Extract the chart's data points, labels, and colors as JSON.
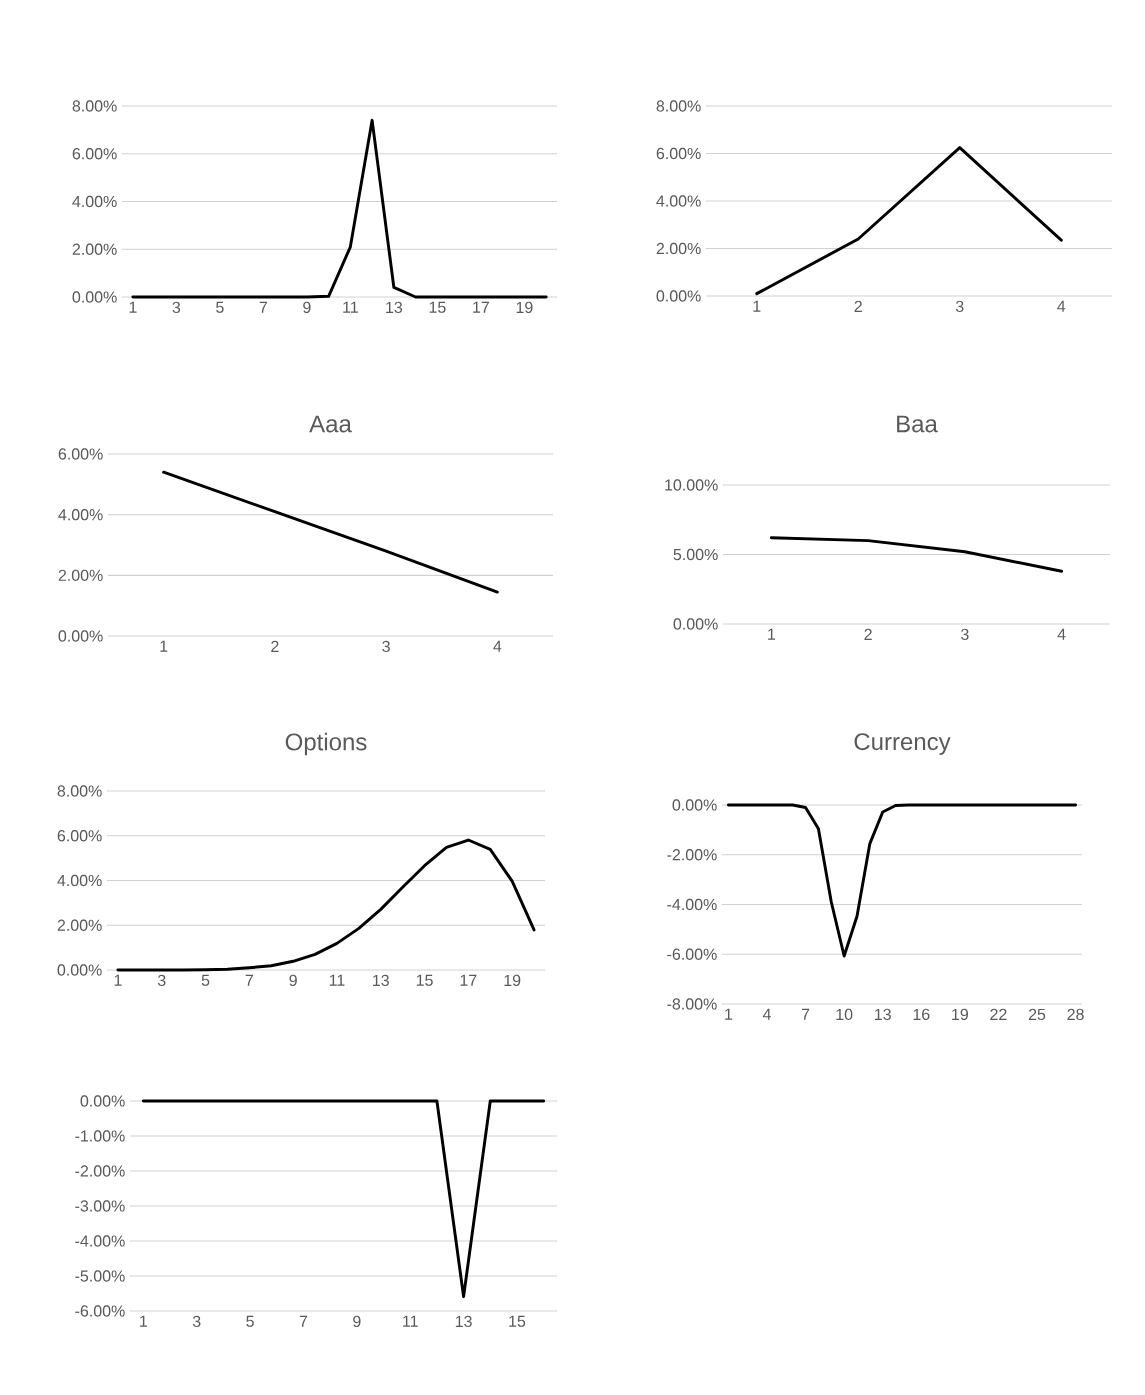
{
  "chart_data": [
    {
      "type": "line",
      "categories": [
        "1",
        null,
        "3",
        null,
        "5",
        null,
        "7",
        null,
        "9",
        null,
        "11",
        null,
        "13",
        null,
        "15",
        null,
        "17",
        null,
        "19",
        null
      ],
      "values": [
        0,
        0,
        0,
        0,
        0,
        0,
        0,
        0,
        0,
        0.03,
        2.1,
        7.4,
        0.4,
        0,
        0,
        0,
        0,
        0,
        0,
        0
      ],
      "color": "#000000",
      "ylim": [
        0,
        8
      ],
      "yticks": [
        {
          "value": 0,
          "label": "0.00%"
        },
        {
          "value": 2,
          "label": "2.00%"
        },
        {
          "value": 4,
          "label": "4.00%"
        },
        {
          "value": 6,
          "label": "6.00%"
        },
        {
          "value": 8,
          "label": "8.00%"
        }
      ],
      "grid": "y"
    },
    {
      "type": "line",
      "categories": [
        "1",
        "2",
        "3",
        "4"
      ],
      "values": [
        0.1,
        2.4,
        6.25,
        2.35
      ],
      "color": "#000000",
      "ylim": [
        0,
        8
      ],
      "yticks": [
        {
          "value": 0,
          "label": "0.00%"
        },
        {
          "value": 2,
          "label": "2.00%"
        },
        {
          "value": 4,
          "label": "4.00%"
        },
        {
          "value": 6,
          "label": "6.00%"
        },
        {
          "value": 8,
          "label": "8.00%"
        }
      ],
      "grid": "y"
    },
    {
      "type": "line",
      "title": "Aaa",
      "categories": [
        "1",
        "2",
        "3",
        "4"
      ],
      "values": [
        5.4,
        4.1,
        2.8,
        1.45
      ],
      "color": "#000000",
      "ylim": [
        0,
        6
      ],
      "yticks": [
        {
          "value": 0,
          "label": "0.00%"
        },
        {
          "value": 2,
          "label": "2.00%"
        },
        {
          "value": 4,
          "label": "4.00%"
        },
        {
          "value": 6,
          "label": "6.00%"
        }
      ],
      "grid": "y"
    },
    {
      "type": "line",
      "title": "Baa",
      "categories": [
        "1",
        "2",
        "3",
        "4"
      ],
      "values": [
        6.2,
        6.0,
        5.2,
        3.8
      ],
      "color": "#000000",
      "ylim": [
        0,
        10
      ],
      "yticks": [
        {
          "value": 0,
          "label": "0.00%"
        },
        {
          "value": 5,
          "label": "5.00%"
        },
        {
          "value": 10,
          "label": "10.00%"
        }
      ],
      "grid": "y"
    },
    {
      "type": "line",
      "title": "Options",
      "categories": [
        "1",
        null,
        "3",
        null,
        "5",
        null,
        "7",
        null,
        "9",
        null,
        "11",
        null,
        "13",
        null,
        "15",
        null,
        "17",
        null,
        "19",
        null
      ],
      "values": [
        0,
        0,
        0,
        0,
        0.01,
        0.03,
        0.1,
        0.19,
        0.39,
        0.7,
        1.19,
        1.86,
        2.71,
        3.7,
        4.66,
        5.48,
        5.81,
        5.39,
        3.97,
        1.79
      ],
      "color": "#000000",
      "ylim": [
        0,
        8
      ],
      "yticks": [
        {
          "value": 0,
          "label": "0.00%"
        },
        {
          "value": 2,
          "label": "2.00%"
        },
        {
          "value": 4,
          "label": "4.00%"
        },
        {
          "value": 6,
          "label": "6.00%"
        },
        {
          "value": 8,
          "label": "8.00%"
        }
      ],
      "grid": "y"
    },
    {
      "type": "line",
      "title": "Currency",
      "categories": [
        "1",
        null,
        null,
        "4",
        null,
        null,
        "7",
        null,
        null,
        "10",
        null,
        null,
        "13",
        null,
        null,
        "16",
        null,
        null,
        "19",
        null,
        null,
        "22",
        null,
        null,
        "25",
        null,
        null,
        "28"
      ],
      "values": [
        0,
        0,
        0,
        0,
        0,
        0,
        -0.1,
        -0.95,
        -3.9,
        -6.07,
        -4.47,
        -1.55,
        -0.28,
        -0.02,
        0,
        0,
        0,
        0,
        0,
        0,
        0,
        0,
        0,
        0,
        0,
        0,
        0,
        0
      ],
      "color": "#000000",
      "ylim": [
        -8,
        0
      ],
      "yticks": [
        {
          "value": -8,
          "label": "-8.00%"
        },
        {
          "value": -6,
          "label": "-6.00%"
        },
        {
          "value": -4,
          "label": "-4.00%"
        },
        {
          "value": -2,
          "label": "-2.00%"
        },
        {
          "value": 0,
          "label": "0.00%"
        }
      ],
      "grid": "y"
    },
    {
      "type": "line",
      "categories": [
        "1",
        null,
        "3",
        null,
        "5",
        null,
        "7",
        null,
        "9",
        null,
        "11",
        null,
        "13",
        null,
        "15",
        null
      ],
      "values": [
        0,
        0,
        0,
        0,
        0,
        0,
        0,
        0,
        0,
        0,
        0,
        0,
        -5.59,
        0,
        0,
        0
      ],
      "color": "#000000",
      "ylim": [
        -6,
        0
      ],
      "yticks": [
        {
          "value": -6,
          "label": "-6.00%"
        },
        {
          "value": -5,
          "label": "-5.00%"
        },
        {
          "value": -4,
          "label": "-4.00%"
        },
        {
          "value": -3,
          "label": "-3.00%"
        },
        {
          "value": -2,
          "label": "-2.00%"
        },
        {
          "value": -1,
          "label": "-1.00%"
        },
        {
          "value": 0,
          "label": "0.00%"
        }
      ],
      "grid": "y"
    }
  ]
}
